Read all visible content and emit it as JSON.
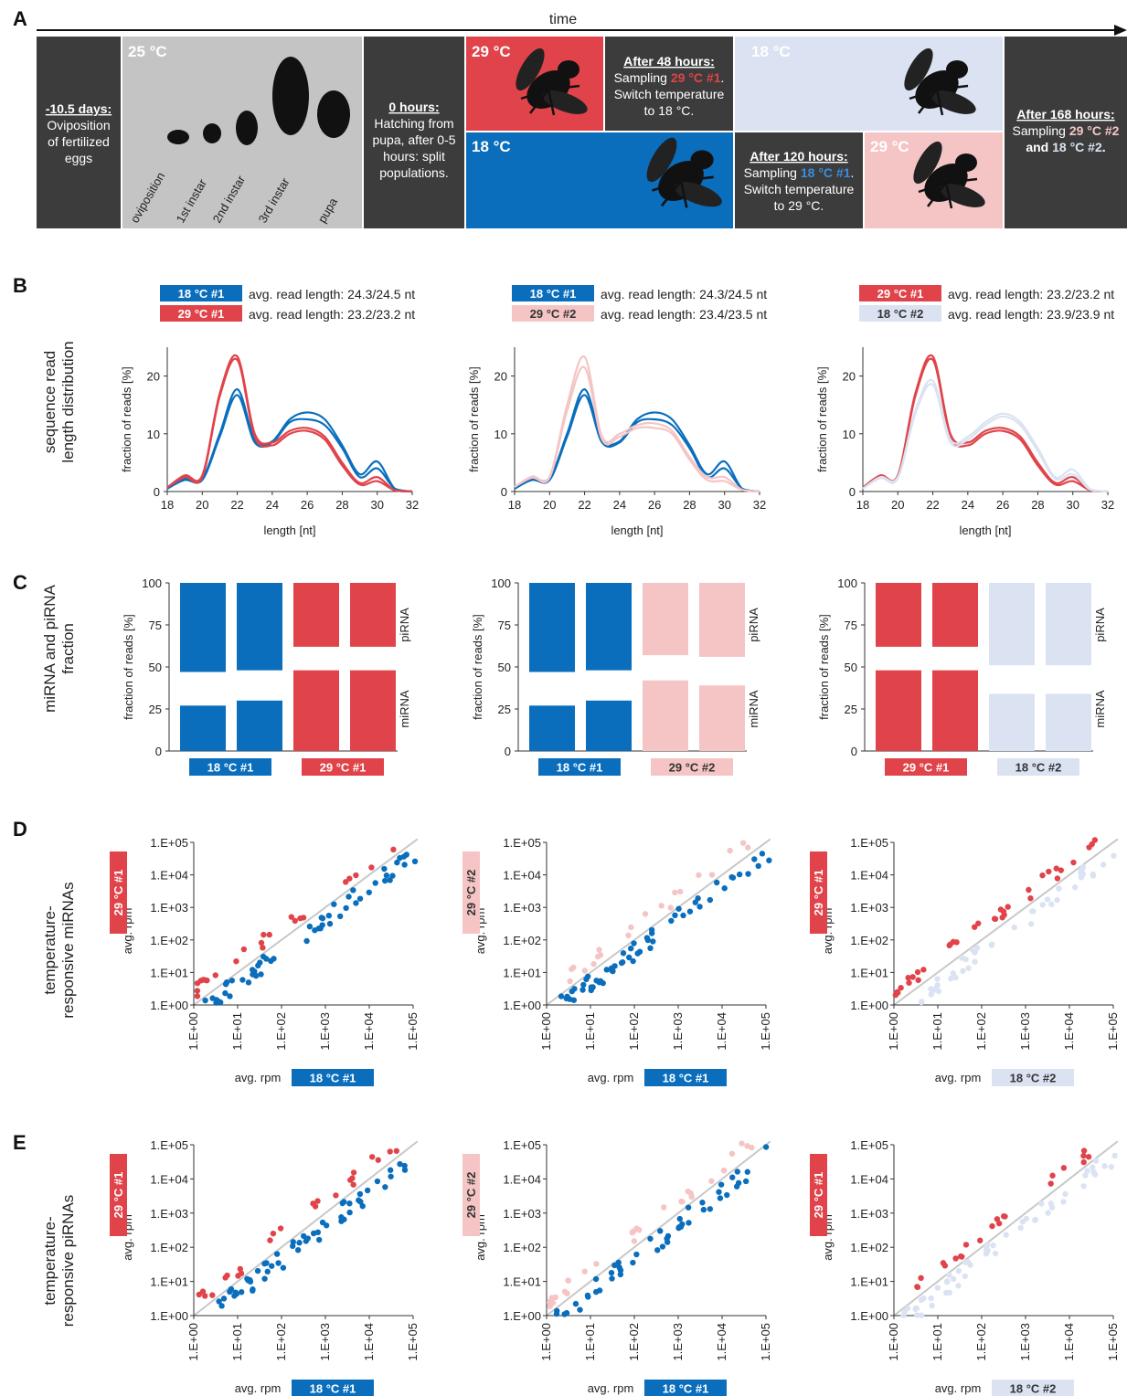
{
  "colors": {
    "blue": "#0a6ebd",
    "red": "#e0444a",
    "pink": "#f5c5c5",
    "lightblue": "#dbe3f2",
    "dark": "#3c3c3c",
    "gray": "#c4c4c4"
  },
  "panel_letters": [
    "A",
    "B",
    "C",
    "D",
    "E"
  ],
  "timeline": {
    "time_label": "time",
    "left_box": {
      "title": "-10.5 days",
      "text": [
        "Oviposition",
        "of fertilized",
        "eggs"
      ]
    },
    "dev_box": {
      "temp": "25 °C",
      "stages": [
        "oviposition",
        "1st instar",
        "2nd instar",
        "3rd instar",
        "pupa"
      ]
    },
    "hatch_box": {
      "title": "0 hours",
      "text": [
        "Hatching from",
        "pupa,",
        "after 0-5",
        "hours",
        "split",
        "populations."
      ]
    },
    "top_hot": {
      "temp": "29 °C"
    },
    "after48": {
      "title": "After 48 hours",
      "l1": "Sampling ",
      "s1": "29 °C #1",
      "l2": "Switch temperature",
      "l3": "to 18 °C."
    },
    "top_cold": {
      "temp": "18 °C"
    },
    "bottom_cold": {
      "temp": "18 °C"
    },
    "after120": {
      "title": "After 120 hours",
      "l1": "Sampling ",
      "s1": "18 °C #1",
      "l2": "Switch temperature",
      "l3": "to 29 °C."
    },
    "bottom_hot": {
      "temp": "29 °C"
    },
    "after168": {
      "title": "After 168 hours",
      "l1": "Sampling ",
      "s1": "29 °C #2",
      "l2": "and ",
      "s2": "18 °C #2",
      "l3": "."
    }
  },
  "row_labels": {
    "B": [
      "sequence read",
      "length distribution"
    ],
    "C": [
      "miRNA and piRNA",
      "fraction"
    ],
    "D": [
      "temperature-",
      "responsive miRNAs"
    ],
    "E": [
      "temperature-",
      "responsive piRNAs"
    ]
  },
  "legends_B": [
    [
      {
        "tag": "18 °C #1",
        "color": "blue",
        "text": "avg. read length: 24.3/24.5 nt"
      },
      {
        "tag": "29 °C #1",
        "color": "red",
        "text": "avg. read length: 23.2/23.2 nt"
      }
    ],
    [
      {
        "tag": "18 °C #1",
        "color": "blue",
        "text": "avg. read length: 24.3/24.5 nt"
      },
      {
        "tag": "29 °C #2",
        "color": "pink",
        "text": "avg. read length: 23.4/23.5 nt"
      }
    ],
    [
      {
        "tag": "29 °C #1",
        "color": "red",
        "text": "avg. read length: 23.2/23.2 nt"
      },
      {
        "tag": "18 °C #2",
        "color": "lightblue",
        "text": "avg. read length: 23.9/23.9 nt"
      }
    ]
  ],
  "axis_text": {
    "B_ylabel": "fraction of reads [%]",
    "B_xlabel": "length [nt]",
    "C_ylabel": "fraction of reads [%]",
    "C_top": "piRNA",
    "C_bottom": "miRNA",
    "scatter_ylabel": "avg. rpm",
    "scatter_xlabel": "avg. rpm"
  },
  "chart_data": [
    {
      "panel": "B1",
      "type": "line",
      "xlim": [
        18,
        32
      ],
      "ylim": [
        0,
        25
      ],
      "xticks": [
        18,
        20,
        22,
        24,
        26,
        28,
        30,
        32
      ],
      "yticks": [
        0,
        10,
        20
      ],
      "series": [
        {
          "color": "blue",
          "x": [
            18,
            19,
            20,
            21,
            22,
            23,
            24,
            25,
            26,
            27,
            28,
            29,
            30,
            31,
            32
          ],
          "y": [
            0.5,
            2.3,
            2.3,
            10,
            17.7,
            9,
            8.7,
            12.5,
            13.7,
            12.5,
            8,
            3,
            5.2,
            0.5,
            0
          ]
        },
        {
          "color": "blue",
          "x": [
            18,
            19,
            20,
            21,
            22,
            23,
            24,
            25,
            26,
            27,
            28,
            29,
            30,
            31,
            32
          ],
          "y": [
            0.5,
            2,
            2,
            9.5,
            16.7,
            8.5,
            8.5,
            12,
            12.5,
            11.5,
            7.5,
            2.5,
            4,
            0.5,
            0
          ]
        },
        {
          "color": "red",
          "x": [
            18,
            19,
            20,
            21,
            22,
            23,
            24,
            25,
            26,
            27,
            28,
            29,
            30,
            31,
            32
          ],
          "y": [
            0.7,
            2.8,
            2.8,
            17,
            23.4,
            10,
            8.5,
            10.5,
            11,
            9.5,
            5,
            1.5,
            2.5,
            0.2,
            0
          ]
        },
        {
          "color": "red",
          "x": [
            18,
            19,
            20,
            21,
            22,
            23,
            24,
            25,
            26,
            27,
            28,
            29,
            30,
            31,
            32
          ],
          "y": [
            0.7,
            2.5,
            2.5,
            16.5,
            22.8,
            9.5,
            8,
            10,
            10.5,
            9,
            4.5,
            1.2,
            1.8,
            0.2,
            0
          ]
        }
      ]
    },
    {
      "panel": "B2",
      "type": "line",
      "xlim": [
        18,
        32
      ],
      "ylim": [
        0,
        25
      ],
      "xticks": [
        18,
        20,
        22,
        24,
        26,
        28,
        30,
        32
      ],
      "yticks": [
        0,
        10,
        20
      ],
      "series": [
        {
          "color": "blue",
          "x": [
            18,
            19,
            20,
            21,
            22,
            23,
            24,
            25,
            26,
            27,
            28,
            29,
            30,
            31,
            32
          ],
          "y": [
            0.5,
            2.3,
            2.3,
            10,
            17.7,
            9,
            8.7,
            12.5,
            13.7,
            12.5,
            8,
            3,
            5.2,
            0.5,
            0
          ]
        },
        {
          "color": "blue",
          "x": [
            18,
            19,
            20,
            21,
            22,
            23,
            24,
            25,
            26,
            27,
            28,
            29,
            30,
            31,
            32
          ],
          "y": [
            0.5,
            2,
            2,
            9.5,
            16.7,
            8.5,
            8.5,
            12,
            12.5,
            11.5,
            7.5,
            2.5,
            4,
            0.5,
            0
          ]
        },
        {
          "color": "pink",
          "x": [
            18,
            19,
            20,
            21,
            22,
            23,
            24,
            25,
            26,
            27,
            28,
            29,
            30,
            31,
            32
          ],
          "y": [
            0.8,
            2.6,
            2.6,
            15,
            23.3,
            9.5,
            10,
            11.5,
            11.8,
            10.5,
            6,
            2.5,
            2.5,
            0.3,
            0
          ]
        },
        {
          "color": "pink",
          "x": [
            18,
            19,
            20,
            21,
            22,
            23,
            24,
            25,
            26,
            27,
            28,
            29,
            30,
            31,
            32
          ],
          "y": [
            0.8,
            2.4,
            2.4,
            14,
            21.5,
            9,
            9.5,
            11,
            11,
            10,
            5.5,
            2,
            1.8,
            0.3,
            0
          ]
        }
      ]
    },
    {
      "panel": "B3",
      "type": "line",
      "xlim": [
        18,
        32
      ],
      "ylim": [
        0,
        25
      ],
      "xticks": [
        18,
        20,
        22,
        24,
        26,
        28,
        30,
        32
      ],
      "yticks": [
        0,
        10,
        20
      ],
      "series": [
        {
          "color": "red",
          "x": [
            18,
            19,
            20,
            21,
            22,
            23,
            24,
            25,
            26,
            27,
            28,
            29,
            30,
            31,
            32
          ],
          "y": [
            0.7,
            2.8,
            2.8,
            17,
            23.4,
            10,
            8.5,
            10.5,
            11,
            9.5,
            5,
            1.5,
            2.5,
            0.2,
            0
          ]
        },
        {
          "color": "red",
          "x": [
            18,
            19,
            20,
            21,
            22,
            23,
            24,
            25,
            26,
            27,
            28,
            29,
            30,
            31,
            32
          ],
          "y": [
            0.7,
            2.5,
            2.5,
            16.5,
            22.8,
            9.5,
            8,
            10,
            10.5,
            9,
            4.5,
            1.2,
            1.8,
            0.2,
            0
          ]
        },
        {
          "color": "lightblue",
          "x": [
            18,
            19,
            20,
            21,
            22,
            23,
            24,
            25,
            26,
            27,
            28,
            29,
            30,
            31,
            32
          ],
          "y": [
            0.5,
            2.5,
            2.5,
            14,
            19.2,
            9,
            9.5,
            12,
            13.5,
            12,
            7.5,
            2.5,
            3.8,
            0.4,
            0
          ]
        },
        {
          "color": "lightblue",
          "x": [
            18,
            19,
            20,
            21,
            22,
            23,
            24,
            25,
            26,
            27,
            28,
            29,
            30,
            31,
            32
          ],
          "y": [
            0.5,
            2.3,
            2.3,
            13.5,
            18.5,
            8.5,
            9,
            11.5,
            13,
            11.5,
            7,
            2.2,
            3,
            0.3,
            0
          ]
        }
      ]
    },
    {
      "panel": "C1",
      "type": "bar",
      "ylim": [
        0,
        100
      ],
      "yticks": [
        0,
        25,
        50,
        75,
        100
      ],
      "bars": [
        {
          "color": "blue",
          "mi": 27,
          "pi_start": 47
        },
        {
          "color": "blue",
          "mi": 30,
          "pi_start": 48
        },
        {
          "color": "red",
          "mi": 48,
          "pi_start": 62
        },
        {
          "color": "red",
          "mi": 48,
          "pi_start": 62
        }
      ],
      "groups": [
        {
          "tag": "18 °C #1",
          "color": "blue"
        },
        {
          "tag": "29 °C #1",
          "color": "red"
        }
      ]
    },
    {
      "panel": "C2",
      "type": "bar",
      "ylim": [
        0,
        100
      ],
      "yticks": [
        0,
        25,
        50,
        75,
        100
      ],
      "bars": [
        {
          "color": "blue",
          "mi": 27,
          "pi_start": 47
        },
        {
          "color": "blue",
          "mi": 30,
          "pi_start": 48
        },
        {
          "color": "pink",
          "mi": 42,
          "pi_start": 57
        },
        {
          "color": "pink",
          "mi": 39,
          "pi_start": 56
        }
      ],
      "groups": [
        {
          "tag": "18 °C #1",
          "color": "blue"
        },
        {
          "tag": "29 °C #2",
          "color": "pink"
        }
      ]
    },
    {
      "panel": "C3",
      "type": "bar",
      "ylim": [
        0,
        100
      ],
      "yticks": [
        0,
        25,
        50,
        75,
        100
      ],
      "bars": [
        {
          "color": "red",
          "mi": 48,
          "pi_start": 62
        },
        {
          "color": "red",
          "mi": 48,
          "pi_start": 62
        },
        {
          "color": "lightblue",
          "mi": 34,
          "pi_start": 51
        },
        {
          "color": "lightblue",
          "mi": 34,
          "pi_start": 51
        }
      ],
      "groups": [
        {
          "tag": "29 °C #1",
          "color": "red"
        },
        {
          "tag": "18 °C #2",
          "color": "lightblue"
        }
      ]
    },
    {
      "panel": "D1",
      "type": "scatter",
      "xlog": true,
      "ylog": true,
      "xlim": [
        1,
        100000
      ],
      "ylim": [
        1,
        100000
      ],
      "ticks": [
        "1.E+00",
        "1.E+01",
        "1.E+02",
        "1.E+03",
        "1.E+04",
        "1.E+05"
      ],
      "y_tag": {
        "tag": "29 °C #1",
        "color": "red"
      },
      "x_tag": {
        "tag": "18 °C #1",
        "color": "blue"
      },
      "hi": "red",
      "lo": "blue",
      "seed": 11
    },
    {
      "panel": "D2",
      "type": "scatter",
      "xlog": true,
      "ylog": true,
      "xlim": [
        1,
        100000
      ],
      "ylim": [
        1,
        100000
      ],
      "ticks": [
        "1.E+00",
        "1.E+01",
        "1.E+02",
        "1.E+03",
        "1.E+04",
        "1.E+05"
      ],
      "y_tag": {
        "tag": "29 °C #2",
        "color": "pink"
      },
      "x_tag": {
        "tag": "18 °C #1",
        "color": "blue"
      },
      "hi": "pink",
      "lo": "blue",
      "seed": 23
    },
    {
      "panel": "D3",
      "type": "scatter",
      "xlog": true,
      "ylog": true,
      "xlim": [
        1,
        100000
      ],
      "ylim": [
        1,
        100000
      ],
      "ticks": [
        "1.E+00",
        "1.E+01",
        "1.E+02",
        "1.E+03",
        "1.E+04",
        "1.E+05"
      ],
      "y_tag": {
        "tag": "29 °C #1",
        "color": "red"
      },
      "x_tag": {
        "tag": "18 °C #2",
        "color": "lightblue"
      },
      "hi": "red",
      "lo": "lightblue",
      "seed": 37
    },
    {
      "panel": "E1",
      "type": "scatter",
      "xlog": true,
      "ylog": true,
      "xlim": [
        1,
        100000
      ],
      "ylim": [
        1,
        100000
      ],
      "ticks": [
        "1.E+00",
        "1.E+01",
        "1.E+02",
        "1.E+03",
        "1.E+04",
        "1.E+05"
      ],
      "y_tag": {
        "tag": "29 °C #1",
        "color": "red"
      },
      "x_tag": {
        "tag": "18 °C #1",
        "color": "blue"
      },
      "hi": "red",
      "lo": "blue",
      "seed": 51
    },
    {
      "panel": "E2",
      "type": "scatter",
      "xlog": true,
      "ylog": true,
      "xlim": [
        1,
        100000
      ],
      "ylim": [
        1,
        100000
      ],
      "ticks": [
        "1.E+00",
        "1.E+01",
        "1.E+02",
        "1.E+03",
        "1.E+04",
        "1.E+05"
      ],
      "y_tag": {
        "tag": "29 °C #2",
        "color": "pink"
      },
      "x_tag": {
        "tag": "18 °C #1",
        "color": "blue"
      },
      "hi": "pink",
      "lo": "blue",
      "seed": 67
    },
    {
      "panel": "E3",
      "type": "scatter",
      "xlog": true,
      "ylog": true,
      "xlim": [
        1,
        100000
      ],
      "ylim": [
        1,
        100000
      ],
      "ticks": [
        "1.E+00",
        "1.E+01",
        "1.E+02",
        "1.E+03",
        "1.E+04",
        "1.E+05"
      ],
      "y_tag": {
        "tag": "29 °C #1",
        "color": "red"
      },
      "x_tag": {
        "tag": "18 °C #2",
        "color": "lightblue"
      },
      "hi": "red",
      "lo": "lightblue",
      "seed": 79
    }
  ]
}
